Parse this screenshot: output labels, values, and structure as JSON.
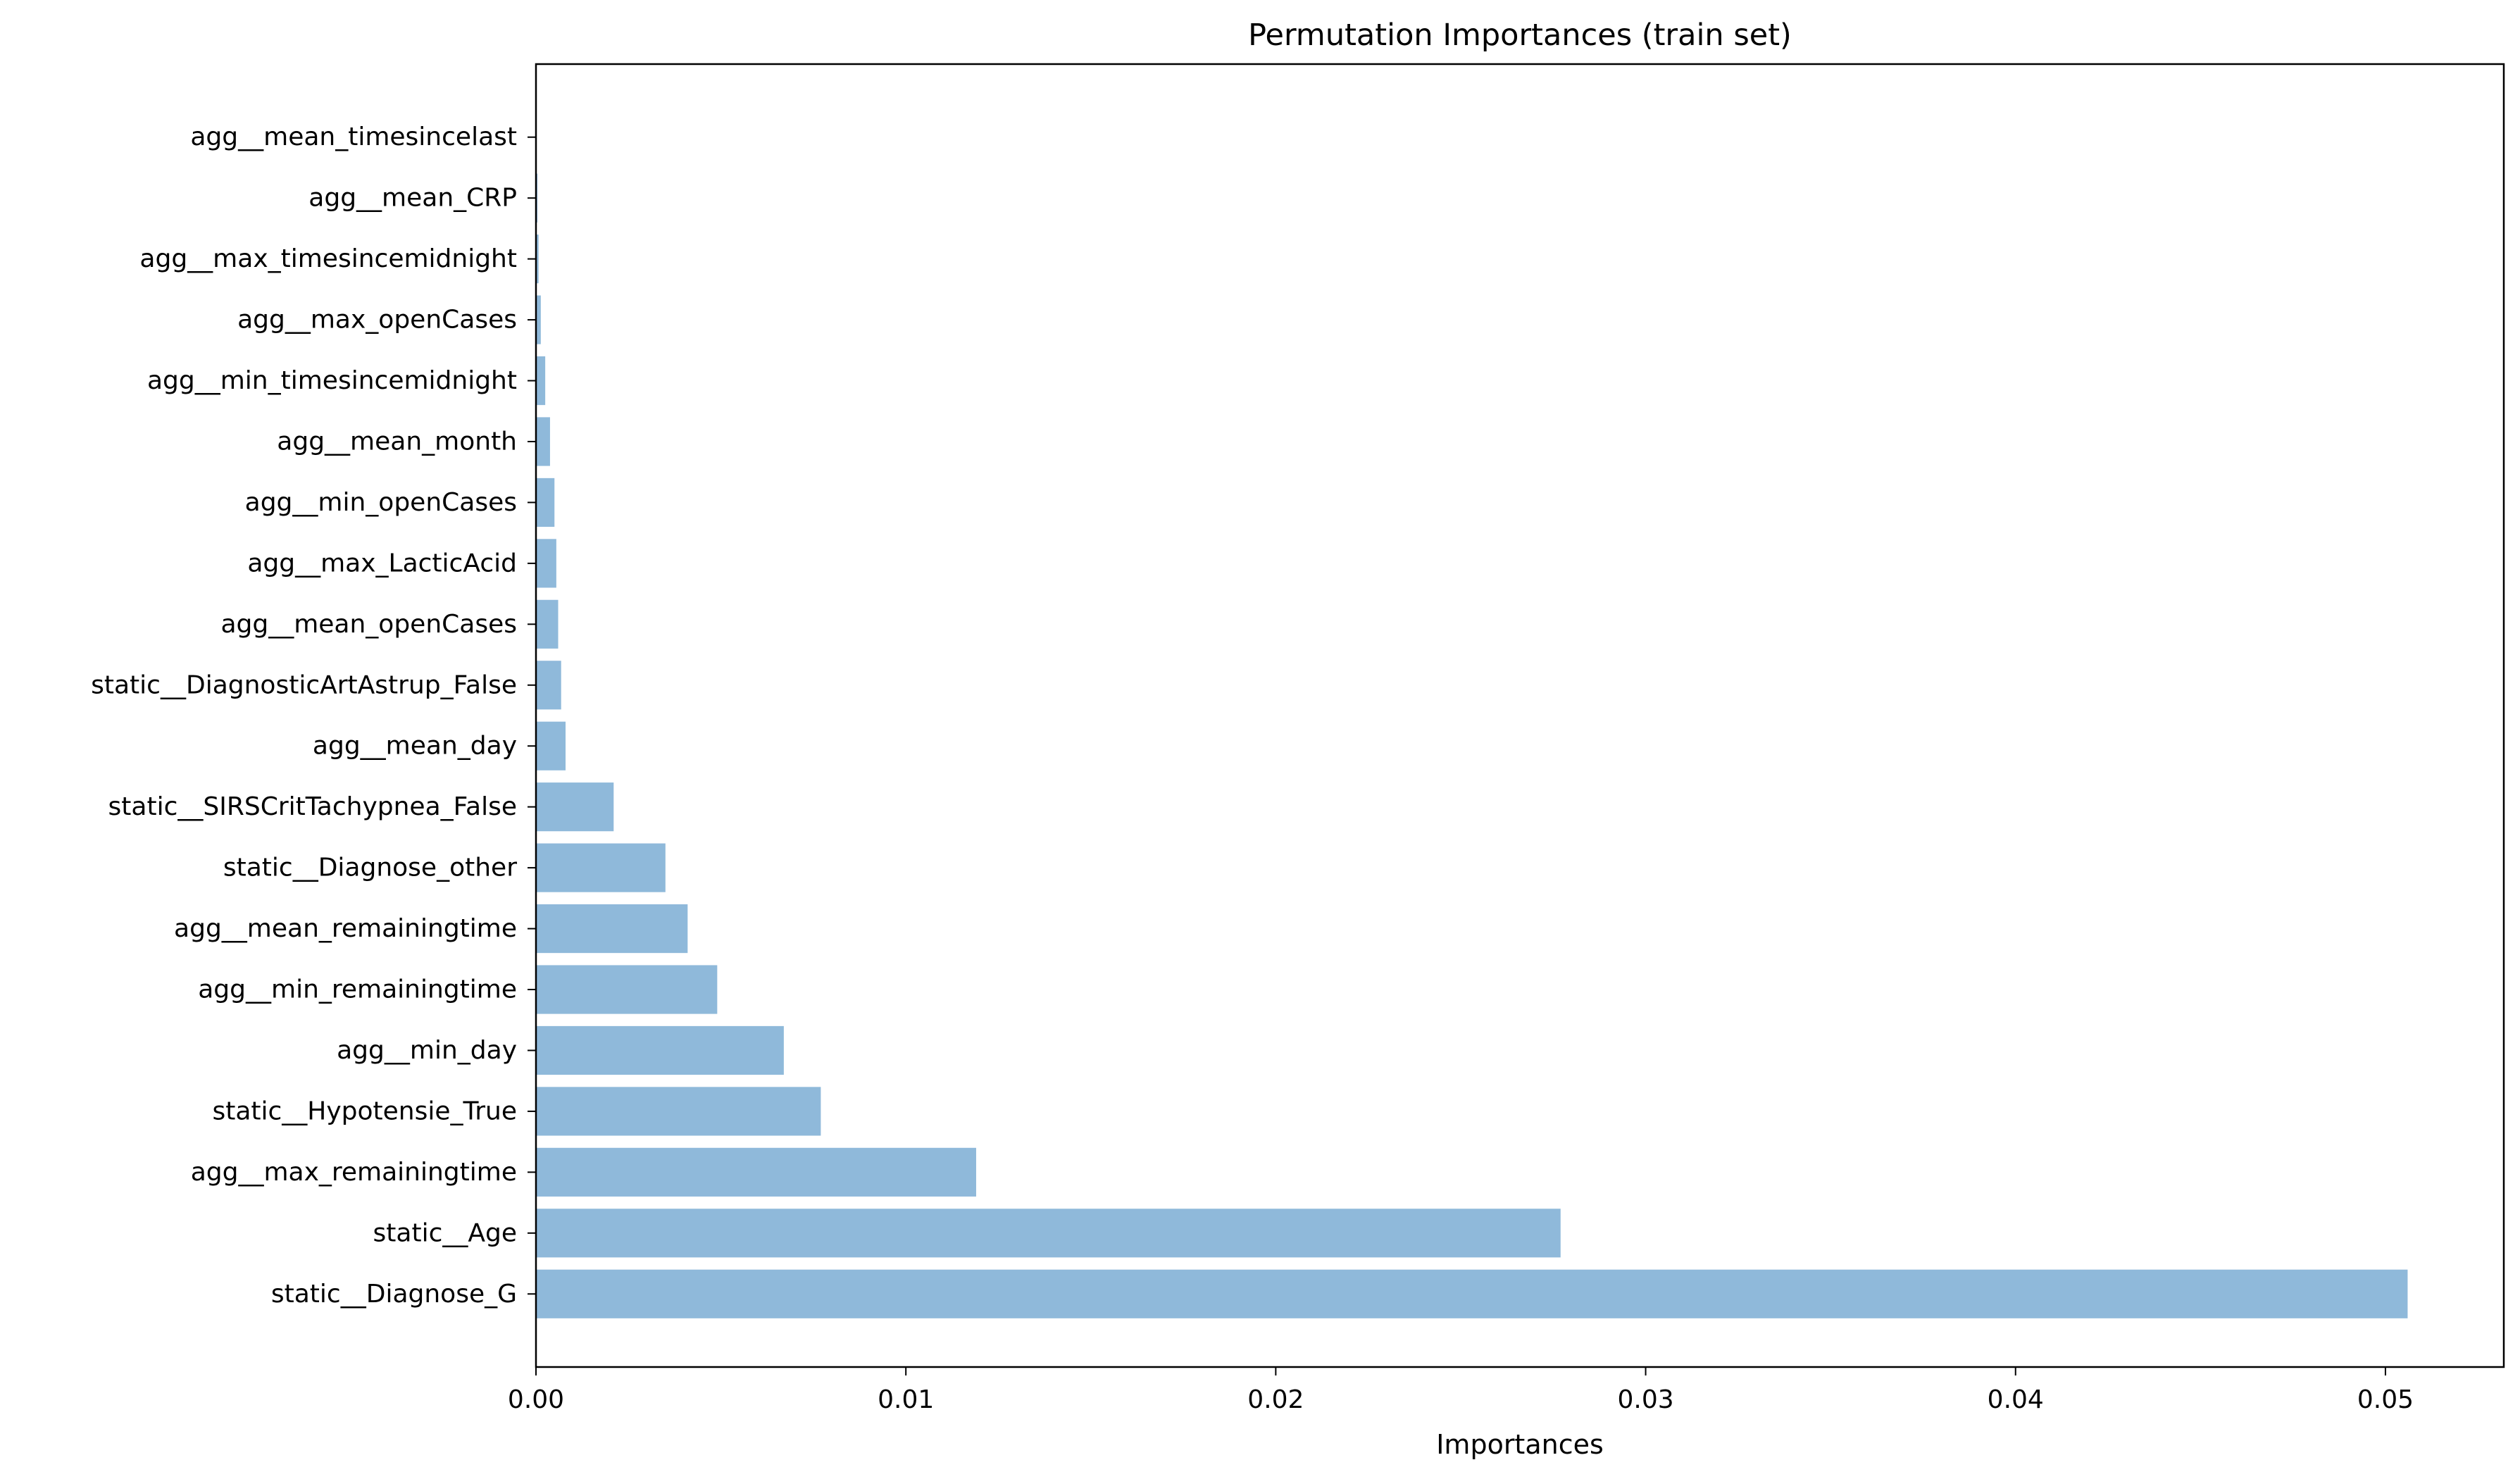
{
  "chart_data": {
    "type": "bar",
    "orientation": "horizontal",
    "title": "Permutation Importances (train set)",
    "xlabel": "Importances",
    "ylabel": "",
    "xlim": [
      0,
      0.0532
    ],
    "xticks": [
      0.0,
      0.01,
      0.02,
      0.03,
      0.04,
      0.05
    ],
    "xtick_labels": [
      "0.00",
      "0.01",
      "0.02",
      "0.03",
      "0.04",
      "0.05"
    ],
    "bar_color": "#8fb9da",
    "grid": false,
    "categories": [
      "static__Diagnose_G",
      "static__Age",
      "agg__max_remainingtime",
      "static__Hypotensie_True",
      "agg__min_day",
      "agg__min_remainingtime",
      "agg__mean_remainingtime",
      "static__Diagnose_other",
      "static__SIRSCritTachypnea_False",
      "agg__mean_day",
      "static__DiagnosticArtAstrup_False",
      "agg__mean_openCases",
      "agg__max_LacticAcid",
      "agg__min_openCases",
      "agg__mean_month",
      "agg__min_timesincemidnight",
      "agg__max_openCases",
      "agg__max_timesincemidnight",
      "agg__mean_CRP",
      "agg__mean_timesincelast"
    ],
    "values": [
      0.0506,
      0.0277,
      0.0119,
      0.0077,
      0.0067,
      0.0049,
      0.0041,
      0.0035,
      0.0021,
      0.0008,
      0.00068,
      0.0006,
      0.00055,
      0.0005,
      0.00038,
      0.00025,
      0.00013,
      7e-05,
      4e-05,
      1e-05
    ]
  }
}
